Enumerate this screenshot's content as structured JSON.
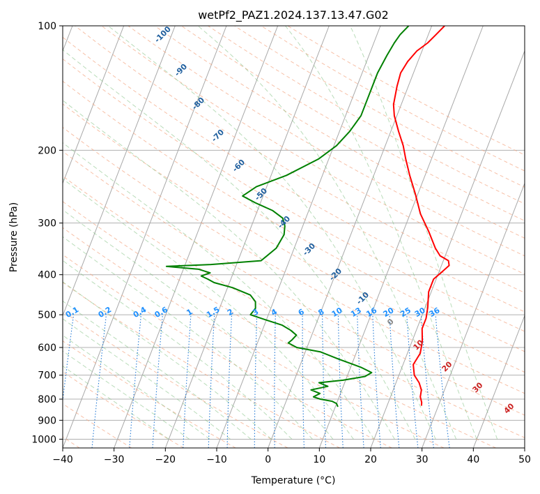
{
  "chart_data": {
    "type": "line",
    "title": "wetPf2_PAZ1.2024.137.13.47.G02",
    "xlabel": "Temperature (°C)",
    "ylabel": "Pressure (hPa)",
    "xlim": [
      -40,
      50
    ],
    "ylim": [
      1050,
      100
    ],
    "y_scale": "log",
    "x_ticks": [
      "−40",
      "−30",
      "−20",
      "−10",
      "0",
      "10",
      "20",
      "30",
      "40",
      "50"
    ],
    "x_tick_values": [
      -40,
      -30,
      -20,
      -10,
      0,
      10,
      20,
      30,
      40,
      50
    ],
    "y_ticks": [
      "100",
      "200",
      "300",
      "400",
      "500",
      "600",
      "700",
      "800",
      "900",
      "1000"
    ],
    "y_tick_values": [
      100,
      200,
      300,
      400,
      500,
      600,
      700,
      800,
      900,
      1000
    ],
    "grid": true,
    "series": [
      {
        "color": "#ff0000",
        "points": [
          [
            2.5,
            100
          ],
          [
            1.5,
            105
          ],
          [
            0.5,
            110
          ],
          [
            -1.0,
            115
          ],
          [
            -2.0,
            122
          ],
          [
            -2.5,
            130
          ],
          [
            -2.2,
            140
          ],
          [
            -1.5,
            155
          ],
          [
            -0.5,
            165
          ],
          [
            1.5,
            180
          ],
          [
            3.5,
            195
          ],
          [
            5.0,
            210
          ],
          [
            7.0,
            230
          ],
          [
            9.5,
            255
          ],
          [
            12.0,
            285
          ],
          [
            15.0,
            315
          ],
          [
            17.5,
            345
          ],
          [
            19.0,
            360
          ],
          [
            21.0,
            370
          ],
          [
            21.5,
            380
          ],
          [
            20.5,
            395
          ],
          [
            19.5,
            410
          ],
          [
            19.5,
            440
          ],
          [
            20.5,
            480
          ],
          [
            21.0,
            510
          ],
          [
            21.0,
            540
          ],
          [
            22.0,
            580
          ],
          [
            22.5,
            620
          ],
          [
            22.0,
            660
          ],
          [
            23.0,
            700
          ],
          [
            24.5,
            730
          ],
          [
            25.5,
            760
          ],
          [
            25.8,
            790
          ],
          [
            26.5,
            815
          ],
          [
            26.7,
            830
          ]
        ]
      },
      {
        "color": "#008000",
        "points": [
          [
            -4.5,
            100
          ],
          [
            -5.5,
            105
          ],
          [
            -6.0,
            110
          ],
          [
            -6.5,
            118
          ],
          [
            -7.0,
            130
          ],
          [
            -7.0,
            150
          ],
          [
            -7.0,
            165
          ],
          [
            -8.0,
            180
          ],
          [
            -9.5,
            195
          ],
          [
            -12.0,
            210
          ],
          [
            -17.0,
            230
          ],
          [
            -22.0,
            245
          ],
          [
            -24.0,
            258
          ],
          [
            -21.0,
            268
          ],
          [
            -17.0,
            280
          ],
          [
            -14.5,
            292
          ],
          [
            -13.5,
            305
          ],
          [
            -13.0,
            320
          ],
          [
            -13.5,
            345
          ],
          [
            -15.5,
            370
          ],
          [
            -25.0,
            378
          ],
          [
            -33.5,
            382
          ],
          [
            -27.0,
            388
          ],
          [
            -24.5,
            396
          ],
          [
            -26.0,
            403
          ],
          [
            -24.5,
            410
          ],
          [
            -23.0,
            418
          ],
          [
            -19.0,
            430
          ],
          [
            -15.0,
            448
          ],
          [
            -13.5,
            465
          ],
          [
            -13.0,
            482
          ],
          [
            -13.5,
            500
          ],
          [
            -10.0,
            515
          ],
          [
            -6.5,
            530
          ],
          [
            -4.5,
            545
          ],
          [
            -3.0,
            560
          ],
          [
            -3.5,
            575
          ],
          [
            -4.0,
            585
          ],
          [
            -2.0,
            600
          ],
          [
            3.0,
            615
          ],
          [
            7.0,
            640
          ],
          [
            12.0,
            670
          ],
          [
            14.5,
            690
          ],
          [
            13.5,
            705
          ],
          [
            9.5,
            720
          ],
          [
            5.0,
            730
          ],
          [
            7.0,
            745
          ],
          [
            4.0,
            760
          ],
          [
            6.0,
            775
          ],
          [
            5.0,
            790
          ],
          [
            6.5,
            800
          ],
          [
            9.0,
            810
          ],
          [
            10.0,
            820
          ],
          [
            10.5,
            835
          ]
        ]
      }
    ],
    "dry_adiabat_labels": [
      "-100",
      "-90",
      "-80",
      "-70",
      "-60",
      "-50",
      "-40",
      "-30",
      "-20",
      "-10",
      "0",
      "10",
      "20",
      "30",
      "40"
    ],
    "mixing_ratio_labels": [
      "0.1",
      "0.2",
      "0.4",
      "0.6",
      "1",
      "1.5",
      "2",
      "3",
      "4",
      "6",
      "8",
      "10",
      "13",
      "16",
      "20",
      "25",
      "30",
      "36"
    ]
  }
}
